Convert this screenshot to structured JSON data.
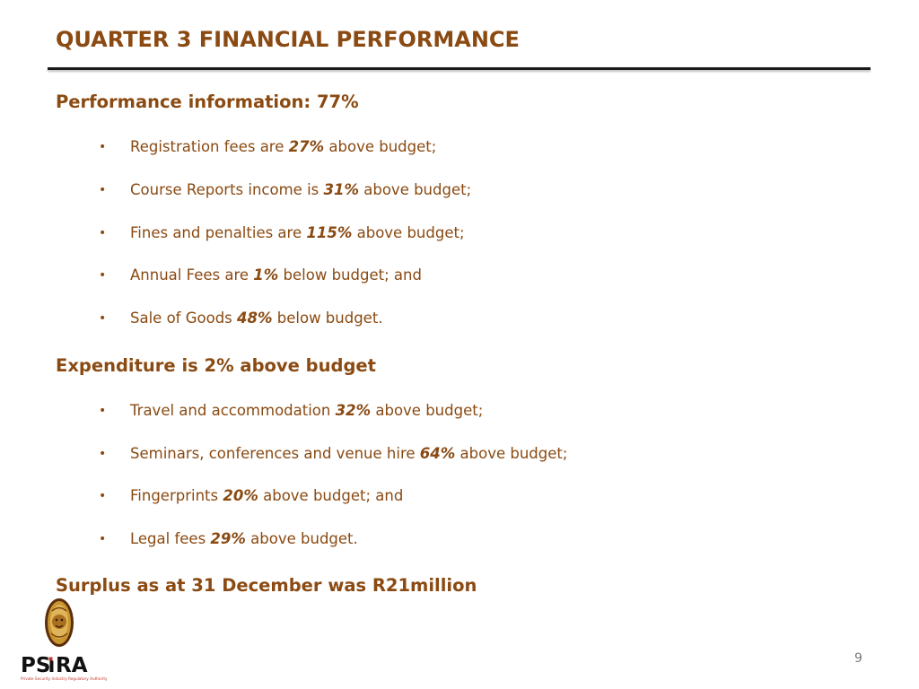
{
  "title": "QUARTER 3 FINANCIAL PERFORMANCE",
  "section1": {
    "heading": "Performance information: 77%",
    "items": [
      {
        "before": "Registration fees are ",
        "pct": "27%",
        "after": " above budget;"
      },
      {
        "before": "Course Reports income is ",
        "pct": "31%",
        "after": " above budget;"
      },
      {
        "before": "Fines and penalties are ",
        "pct": "115%",
        "after": " above budget;"
      },
      {
        "before": "Annual Fees are ",
        "pct": "1%",
        "after": " below budget; and"
      },
      {
        "before": "Sale of Goods ",
        "pct": "48%",
        "after": " below budget."
      }
    ]
  },
  "section2": {
    "heading": "Expenditure is 2% above budget",
    "items": [
      {
        "before": "Travel and accommodation ",
        "pct": "32%",
        "after": " above budget;"
      },
      {
        "before": "Seminars, conferences and venue hire ",
        "pct": "64%",
        "after": " above budget;"
      },
      {
        "before": "Fingerprints ",
        "pct": "20%",
        "after": " above budget; and"
      },
      {
        "before": "Legal fees ",
        "pct": "29%",
        "after": " above budget."
      }
    ]
  },
  "section3": {
    "heading": "Surplus as at 31 December was R21million"
  },
  "page_number": "9",
  "bullet_char": "•",
  "logo": {
    "wordmark": "PSiRA",
    "tagline": "Private Security Industry Regulatory Authority"
  },
  "colors": {
    "text": "#8a4a12",
    "rule": "#1a1a1a",
    "page_number": "#777777",
    "logo_gold": "#c8952e",
    "logo_dark": "#5a2d0c",
    "logo_red": "#c0392b"
  }
}
